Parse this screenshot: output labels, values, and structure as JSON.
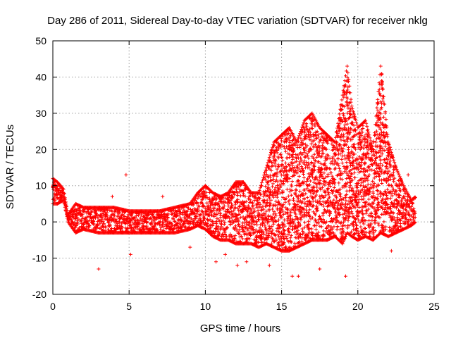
{
  "chart_data": {
    "type": "scatter",
    "title": "Day 286 of 2011, Sidereal Day-to-day VTEC variation (SDTVAR) for receiver nklg",
    "xlabel": "GPS time / hours",
    "ylabel": "SDTVAR / TECUs",
    "xlim": [
      0,
      25
    ],
    "ylim": [
      -20,
      50
    ],
    "x_ticks": [
      0,
      5,
      10,
      15,
      20,
      25
    ],
    "y_ticks": [
      -20,
      -10,
      0,
      10,
      20,
      30,
      40,
      50
    ],
    "grid": true,
    "marker": "plus",
    "series_color": "#ff0000",
    "envelope": {
      "x": [
        0.0,
        0.3,
        0.7,
        1.0,
        1.5,
        2.0,
        3.0,
        4.0,
        5.0,
        6.0,
        7.0,
        8.0,
        9.0,
        9.5,
        10.0,
        10.5,
        11.0,
        11.5,
        12.0,
        12.5,
        13.0,
        13.5,
        14.0,
        14.5,
        15.0,
        15.5,
        16.0,
        16.5,
        17.0,
        17.5,
        18.0,
        18.5,
        19.0,
        19.3,
        19.6,
        20.0,
        20.5,
        21.0,
        21.5,
        22.0,
        22.5,
        23.0,
        23.5,
        23.8
      ],
      "upper": [
        12,
        11,
        9,
        2,
        5,
        4,
        4,
        4,
        3,
        3,
        3,
        4,
        5,
        8,
        10,
        8,
        7,
        8,
        11,
        11,
        8,
        8,
        15,
        22,
        24,
        26,
        22,
        28,
        30,
        26,
        24,
        22,
        35,
        43,
        32,
        26,
        28,
        20,
        43,
        22,
        15,
        10,
        6,
        7
      ],
      "lower": [
        5,
        5,
        6,
        0,
        -3,
        -2,
        -3,
        -3,
        -3,
        -3,
        -3,
        -3,
        -2,
        -1,
        -2,
        -4,
        -5,
        -5,
        -6,
        -6,
        -6,
        -7,
        -6,
        -7,
        -8,
        -8,
        -7,
        -6,
        -5,
        -5,
        -5,
        -4,
        -6,
        -3,
        -4,
        -5,
        -4,
        -5,
        -3,
        -4,
        -3,
        -2,
        -1,
        0
      ]
    },
    "outliers": [
      {
        "x": 3.0,
        "y": -13
      },
      {
        "x": 4.8,
        "y": 13
      },
      {
        "x": 5.1,
        "y": -9
      },
      {
        "x": 3.9,
        "y": 7
      },
      {
        "x": 7.2,
        "y": 7
      },
      {
        "x": 9.0,
        "y": -7
      },
      {
        "x": 10.7,
        "y": -11
      },
      {
        "x": 11.3,
        "y": -9
      },
      {
        "x": 12.1,
        "y": -12
      },
      {
        "x": 12.7,
        "y": -11
      },
      {
        "x": 14.2,
        "y": -12
      },
      {
        "x": 15.7,
        "y": -15
      },
      {
        "x": 16.1,
        "y": -15
      },
      {
        "x": 17.5,
        "y": -13
      },
      {
        "x": 19.2,
        "y": -15
      },
      {
        "x": 18.6,
        "y": 25
      },
      {
        "x": 22.2,
        "y": -8
      },
      {
        "x": 23.3,
        "y": 13
      }
    ]
  }
}
